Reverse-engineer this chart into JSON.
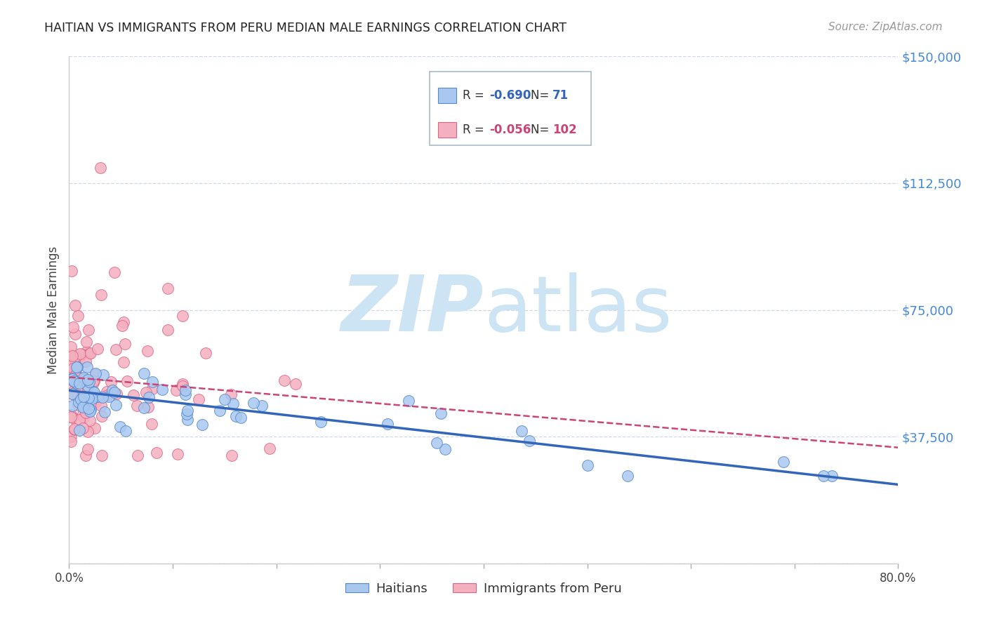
{
  "title": "HAITIAN VS IMMIGRANTS FROM PERU MEDIAN MALE EARNINGS CORRELATION CHART",
  "source": "Source: ZipAtlas.com",
  "ylabel": "Median Male Earnings",
  "xlim": [
    0.0,
    0.8
  ],
  "ylim": [
    0,
    150000
  ],
  "yticks": [
    0,
    37500,
    75000,
    112500,
    150000
  ],
  "ytick_labels": [
    "",
    "$37,500",
    "$75,000",
    "$112,500",
    "$150,000"
  ],
  "background_color": "#ffffff",
  "grid_color": "#d0d8e8",
  "watermark_zip": "ZIP",
  "watermark_atlas": "atlas",
  "watermark_color": "#cde4f5",
  "haiti_color": "#a8c8f0",
  "haiti_edge": "#5588cc",
  "haiti_line": "#3366bb",
  "peru_color": "#f5b0c0",
  "peru_edge": "#dd6688",
  "peru_line": "#cc4477",
  "R_haiti": -0.69,
  "N_haiti": 71,
  "R_peru": -0.056,
  "N_peru": 102,
  "legend_label_haiti": "Haitians",
  "legend_label_peru": "Immigrants from Peru"
}
